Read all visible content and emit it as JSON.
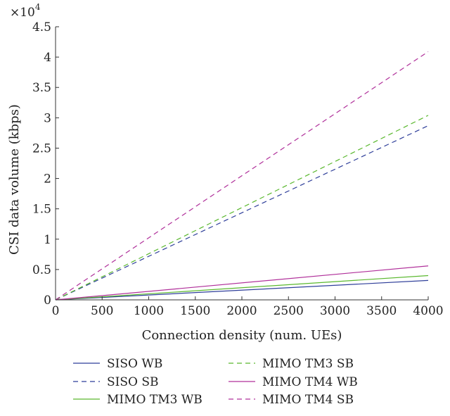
{
  "chart_data": {
    "type": "line",
    "title": "",
    "xlabel": "Connection density (num. UEs)",
    "ylabel": "CSI data volume (kbps)",
    "y_scale_label": "×10",
    "y_scale_exponent": "4",
    "xlim": [
      0,
      4000
    ],
    "ylim": [
      0,
      4.5
    ],
    "x_ticks": [
      "0",
      "500",
      "1000",
      "1500",
      "2000",
      "2500",
      "3000",
      "3500",
      "4000"
    ],
    "y_ticks": [
      "0",
      "0.5",
      "1",
      "1.5",
      "2",
      "2.5",
      "3",
      "3.5",
      "4",
      "4.5"
    ],
    "grid": false,
    "legend_position": "bottom",
    "x": [
      0,
      4000
    ],
    "series": [
      {
        "name": "SISO WB",
        "values": [
          0,
          0.32
        ],
        "color": "#2f3f9a",
        "dash": "solid"
      },
      {
        "name": "SISO SB",
        "values": [
          0,
          2.87
        ],
        "color": "#2f3f9a",
        "dash": "dashed"
      },
      {
        "name": "MIMO TM3 WB",
        "values": [
          0,
          0.4
        ],
        "color": "#5ab82e",
        "dash": "solid"
      },
      {
        "name": "MIMO TM3 SB",
        "values": [
          0,
          3.04
        ],
        "color": "#5ab82e",
        "dash": "dashed"
      },
      {
        "name": "MIMO TM4 WB",
        "values": [
          0,
          0.56
        ],
        "color": "#b0309a",
        "dash": "solid"
      },
      {
        "name": "MIMO TM4 SB",
        "values": [
          0,
          4.09
        ],
        "color": "#b0309a",
        "dash": "dashed"
      }
    ]
  }
}
